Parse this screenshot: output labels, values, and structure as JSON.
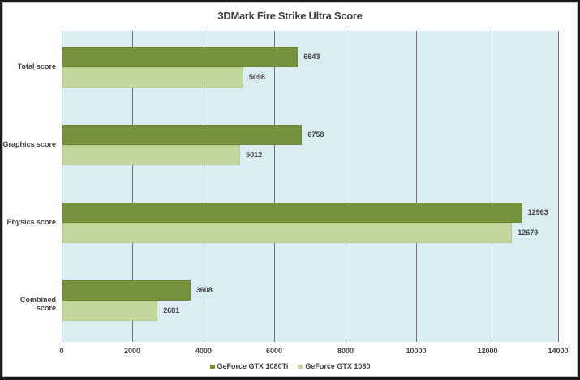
{
  "chart_data": {
    "type": "bar",
    "orientation": "horizontal",
    "title": "3DMark Fire Strike Ultra Score",
    "categories": [
      "Total score",
      "Graphics score",
      "Physics score",
      "Combined score"
    ],
    "series": [
      {
        "name": "GeForce GTX 1080Ti",
        "color": "#76923c",
        "values": [
          6643,
          6758,
          12963,
          3608
        ]
      },
      {
        "name": "GeForce GTX 1080",
        "color": "#c3d69b",
        "values": [
          5098,
          5012,
          12679,
          2681
        ]
      }
    ],
    "xlabel": "",
    "ylabel": "",
    "xlim": [
      0,
      14000
    ],
    "x_ticks": [
      "0",
      "2000",
      "4000",
      "6000",
      "8000",
      "10000",
      "12000",
      "14000"
    ],
    "grid": true,
    "legend_position": "bottom",
    "plot_background": "#daedf3"
  }
}
